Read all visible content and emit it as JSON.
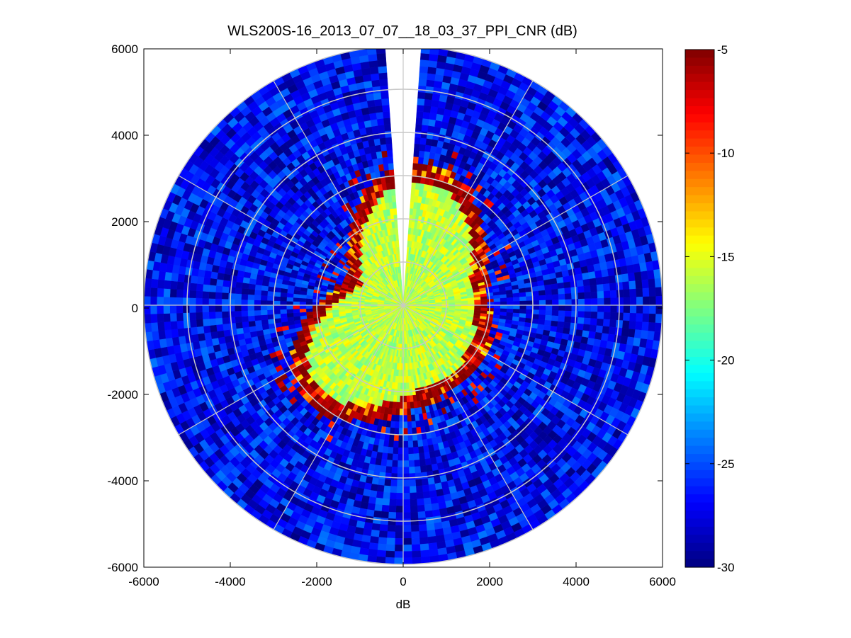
{
  "chart_data": {
    "type": "heatmap",
    "subtype": "polar-ppi",
    "title": "WLS200S-16_2013_07_07__18_03_37_PPI_CNR (dB)",
    "xlabel": "dB",
    "ylabel": "",
    "xlim": [
      -6000,
      6000
    ],
    "ylim": [
      -6000,
      6000
    ],
    "x_ticks": [
      "-6000",
      "-4000",
      "-2000",
      "0",
      "2000",
      "4000",
      "6000"
    ],
    "y_ticks": [
      "6000",
      "4000",
      "2000",
      "0",
      "-2000",
      "-4000",
      "-6000"
    ],
    "max_range": 6000,
    "range_rings": [
      1000,
      2000,
      3000,
      4000,
      5000,
      6000
    ],
    "spoke_angles_deg": [
      0,
      30,
      60,
      90,
      120,
      150,
      180,
      210,
      240,
      270,
      300,
      330
    ],
    "missing_sector_deg": [
      -3.5,
      3.5
    ],
    "colorbar": {
      "clim": [
        -30,
        -5
      ],
      "ticks": [
        "-5",
        "-10",
        "-15",
        "-20",
        "-25",
        "-30"
      ],
      "colormap": "jet"
    },
    "field_description": {
      "inner_region_range_m": [
        0,
        2800
      ],
      "inner_value_db": -16,
      "ring_echo_value_db": -5,
      "outer_value_db": -27
    },
    "colors": {
      "grid": "#c8c8c8",
      "axis": "#000000",
      "background": "#ffffff"
    }
  }
}
